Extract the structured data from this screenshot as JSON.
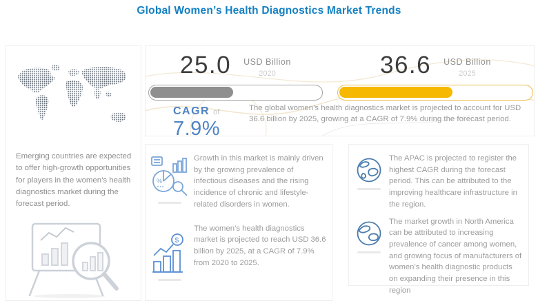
{
  "title": "Global Women’s Health Diagnostics Market Trends",
  "stats": {
    "current": {
      "value": "25.0",
      "unit": "USD Billion",
      "year": "2020",
      "fill_pct": 48,
      "color": "#8f8f8f"
    },
    "forecast": {
      "value": "36.6",
      "unit": "USD Billion",
      "year": "2025",
      "fill_pct": 58,
      "color": "#f6b800"
    }
  },
  "cagr": {
    "label": "CAGR",
    "of": "of",
    "value": "7.9%"
  },
  "summary": "The global women’s health diagnostics market is projected to account for USD 36.6 billion by 2025, growing at a CAGR of 7.9% during the forecast period.",
  "left_panel": {
    "text": "Emerging countries are expected to offer high-growth opportunities for players in the women’s health diagnostics market during the forecast period."
  },
  "insights": [
    {
      "icon": "analytics-pie-magnifier-icon",
      "text": "Growth in this market is mainly driven by the growing prevalence of infectious diseases and the rising incidence of chronic and lifestyle-related disorders in women."
    },
    {
      "icon": "bar-chart-coin-icon",
      "text": "The women’s health diagnostics market is projected to reach USD 36.6 billion by 2025, at a CAGR of 7.9% from 2020 to 2025."
    },
    {
      "icon": "globe-icon",
      "text": "The APAC is projected to register the highest CAGR during the forecast period. This can be attributed to the improving healthcare infrastructure in the region."
    },
    {
      "icon": "globe-icon",
      "text": "The market growth in North America can be attributed to increasing prevalence of cancer among women, and growing focus of manufacturers of women’s health diagnostic products on expanding their presence in this region"
    }
  ],
  "colors": {
    "accent_blue": "#1480c2",
    "cagr_blue": "#4f83c5",
    "bar_2020": "#8f8f8f",
    "bar_2025": "#f6b800",
    "body_text": "#9c9c9c"
  }
}
